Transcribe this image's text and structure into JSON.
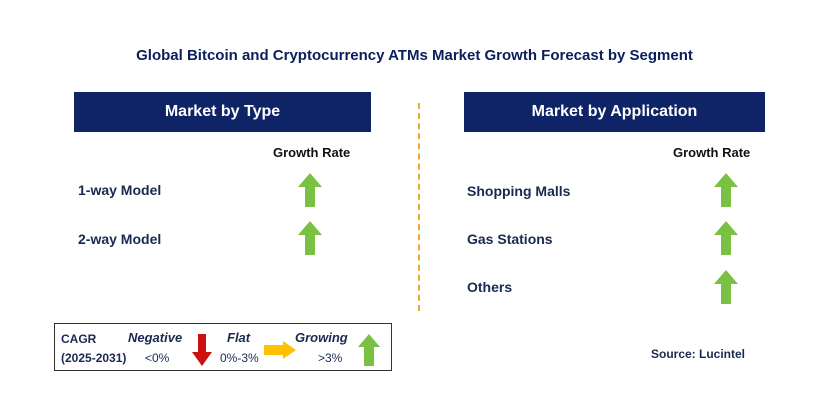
{
  "title": "Global Bitcoin and Cryptocurrency ATMs Market Growth Forecast by Segment",
  "left_panel": {
    "header": "Market by Type",
    "column_label": "Growth Rate",
    "rows": [
      {
        "label": "1-way Model",
        "trend": "growing"
      },
      {
        "label": "2-way Model",
        "trend": "growing"
      }
    ]
  },
  "right_panel": {
    "header": "Market by Application",
    "column_label": "Growth Rate",
    "rows": [
      {
        "label": "Shopping Malls",
        "trend": "growing"
      },
      {
        "label": "Gas Stations",
        "trend": "growing"
      },
      {
        "label": "Others",
        "trend": "growing"
      }
    ]
  },
  "legend": {
    "cagr_label": "CAGR",
    "period": "(2025-2031)",
    "negative_label": "Negative",
    "negative_range": "<0%",
    "flat_label": "Flat",
    "flat_range": "0%-3%",
    "growing_label": "Growing",
    "growing_range": ">3%"
  },
  "source": "Source: Lucintel",
  "colors": {
    "header_bg": "#0f2466",
    "growing": "#7ac143",
    "negative": "#cc1111",
    "flat": "#ffc000",
    "divider": "#f0a830"
  }
}
